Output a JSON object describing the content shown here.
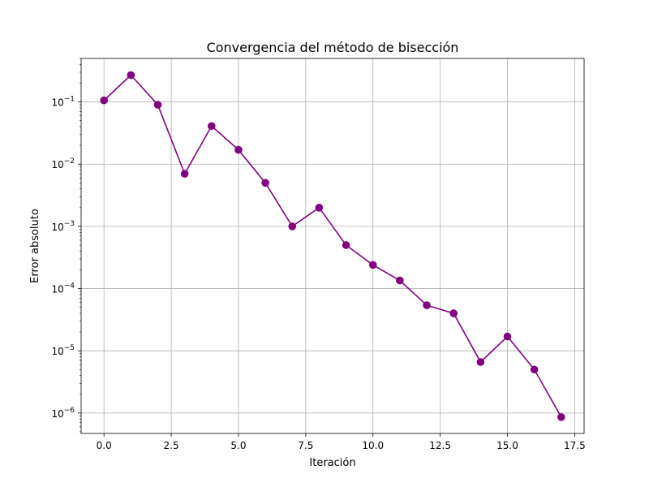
{
  "chart_data": {
    "type": "line",
    "title": "Convergencia del método de bisección",
    "xlabel": "Iteración",
    "ylabel": "Error absoluto",
    "xlim": [
      -0.85,
      17.85
    ],
    "ylim": [
      4.7e-07,
      0.5
    ],
    "yscale": "log",
    "grid": true,
    "x_ticks": [
      0,
      2.5,
      5,
      7.5,
      10,
      12.5,
      15,
      17.5
    ],
    "x_tick_labels": [
      "0.0",
      "2.5",
      "5.0",
      "7.5",
      "10.0",
      "12.5",
      "15.0",
      "17.5"
    ],
    "y_tick_exponents": [
      -1,
      -2,
      -3,
      -4,
      -5,
      -6
    ],
    "y_tick_labels": [
      {
        "base": "10",
        "exp": "−1"
      },
      {
        "base": "10",
        "exp": "−2"
      },
      {
        "base": "10",
        "exp": "−3"
      },
      {
        "base": "10",
        "exp": "−4"
      },
      {
        "base": "10",
        "exp": "−5"
      },
      {
        "base": "10",
        "exp": "−6"
      }
    ],
    "series": [
      {
        "color": "#800080",
        "marker": "circle",
        "x": [
          0,
          1,
          2,
          3,
          4,
          5,
          6,
          7,
          8,
          9,
          10,
          11,
          12,
          13,
          14,
          15,
          16,
          17
        ],
        "y": [
          0.106,
          0.27,
          0.09,
          0.007,
          0.041,
          0.017,
          0.005,
          0.001,
          0.002,
          0.0005,
          0.00024,
          0.000135,
          5.4e-05,
          4e-05,
          6.6e-06,
          1.7e-05,
          5e-06,
          8.6e-07
        ]
      }
    ]
  }
}
